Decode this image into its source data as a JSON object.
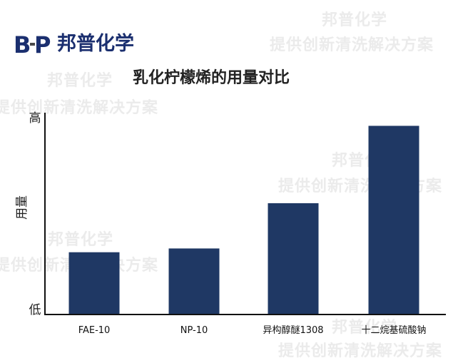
{
  "brand": {
    "mark_letters": [
      "B",
      "P"
    ],
    "name": "邦普化学",
    "color": "#1b2f6f",
    "accent": "#4a4a4a"
  },
  "watermark": {
    "brand": "邦普化学",
    "slogan": "提供创新清洗解决方案"
  },
  "chart_data": {
    "type": "bar",
    "title": "乳化柠檬烯的用量对比",
    "xlabel": "",
    "ylabel": "用量",
    "y_tick_labels": {
      "high": "高",
      "low": "低"
    },
    "categories": [
      "FAE-10",
      "NP-10",
      "异构醇醚1308",
      "十二烷基硫酸钠"
    ],
    "values": [
      0.33,
      0.35,
      0.59,
      1.0
    ],
    "ylim": [
      0,
      1.1
    ],
    "grid": false,
    "legend": "none",
    "bar_color": "#1f3864"
  }
}
